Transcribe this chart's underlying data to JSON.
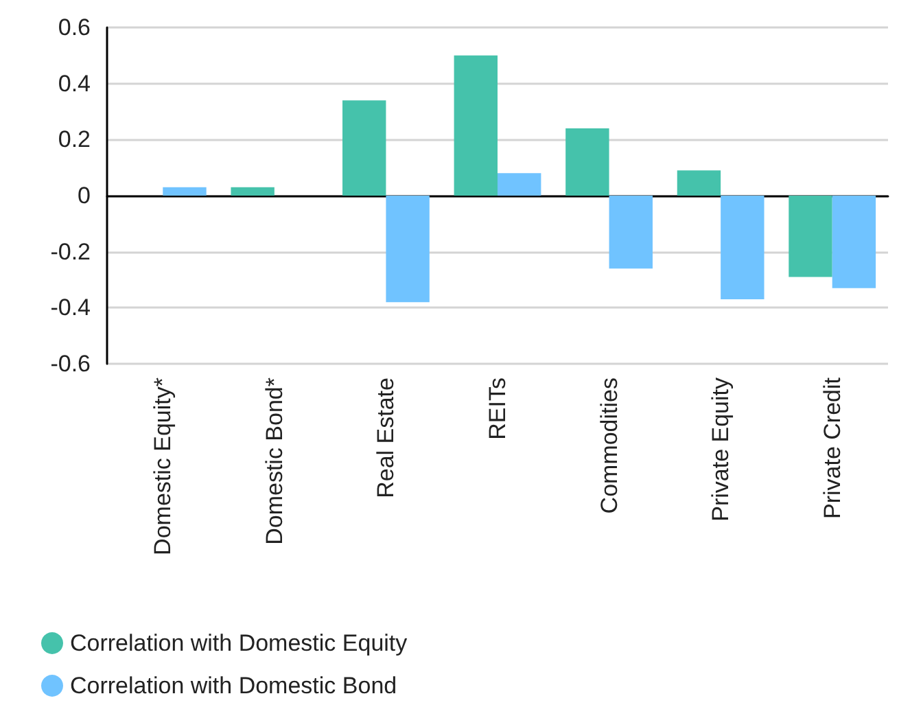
{
  "chart_data": {
    "type": "bar",
    "categories": [
      "Domestic Equity*",
      "Domestic Bond*",
      "Real Estate",
      "REITs",
      "Commodities",
      "Private Equity",
      "Private Credit"
    ],
    "series": [
      {
        "name": "Correlation with Domestic Equity",
        "color": "#45c2ab",
        "values": [
          null,
          0.03,
          0.34,
          0.5,
          0.24,
          0.09,
          -0.29
        ]
      },
      {
        "name": "Correlation with Domestic Bond",
        "color": "#70c3ff",
        "values": [
          0.03,
          null,
          -0.38,
          0.08,
          -0.26,
          -0.37,
          -0.33
        ]
      }
    ],
    "ylim": [
      -0.6,
      0.6
    ],
    "yticks": [
      -0.6,
      -0.4,
      -0.2,
      0,
      0.2,
      0.4,
      0.6
    ],
    "grid": "y",
    "legend": "bottom left"
  }
}
